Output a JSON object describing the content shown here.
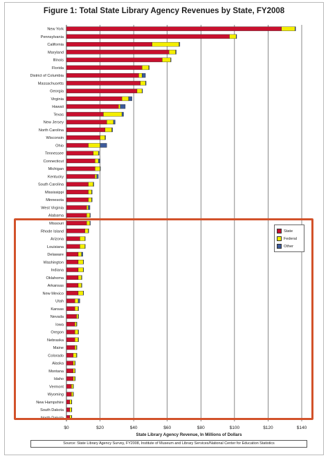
{
  "chart_data": {
    "type": "bar",
    "orientation": "horizontal",
    "stacked": true,
    "title": "Figure 1: Total State Library Agency Revenues by State, FY2008",
    "xlabel": "State Library Agency Revenue, In Millions of Dollars",
    "ylabel": "",
    "xlim": [
      0,
      140
    ],
    "x_ticks": [
      "$0",
      "$20",
      "$40",
      "$60",
      "$80",
      "$100",
      "$120",
      "$140"
    ],
    "x_tick_values": [
      0,
      20,
      40,
      60,
      80,
      100,
      120,
      140
    ],
    "grid": "vertical",
    "legend_position": "right",
    "categories": [
      "New York",
      "Pennsylvania",
      "California",
      "Maryland",
      "Illinois",
      "Florida",
      "District of Columbia",
      "Massachusetts",
      "Georgia",
      "Virginia",
      "Hawaii",
      "Texas",
      "New Jersey",
      "North Carolina",
      "Wisconsin",
      "Ohio",
      "Tennessee",
      "Connecticut",
      "Michigan",
      "Kentucky",
      "South Carolina",
      "Mississippi",
      "Minnesota",
      "West Virginia",
      "Alabama",
      "Missouri",
      "Rhode Island",
      "Arizona",
      "Louisiana",
      "Delaware",
      "Washington",
      "Indiana",
      "Oklahoma",
      "Arkansas",
      "New Mexico",
      "Utah",
      "Kansas",
      "Nevada",
      "Iowa",
      "Oregon",
      "Nebraska",
      "Maine",
      "Colorado",
      "Alaska",
      "Montana",
      "Idaho",
      "Vermont",
      "Wyoming",
      "New Hampshire",
      "South Dakota",
      "North Dakota"
    ],
    "series": [
      {
        "name": "State",
        "color": "#c8102e",
        "values": [
          128,
          97,
          51,
          61,
          57,
          45,
          43,
          44,
          42,
          33,
          31,
          22,
          24,
          23,
          20,
          13,
          16,
          17,
          17,
          17,
          13,
          13,
          13,
          12,
          12,
          12,
          11,
          8,
          8,
          7,
          7,
          7,
          7,
          7,
          7,
          5,
          5,
          6,
          5,
          5,
          5,
          5,
          4,
          4,
          4,
          4,
          3,
          3,
          2,
          2,
          2
        ]
      },
      {
        "name": "Federal",
        "color": "#f4ee00",
        "values": [
          8,
          4,
          16,
          4,
          5,
          4,
          2,
          3,
          3,
          4,
          1,
          11,
          4,
          4,
          3,
          7,
          3,
          2,
          3,
          1,
          3,
          2,
          2,
          1,
          2,
          2,
          2,
          3,
          3,
          2,
          3,
          3,
          2,
          2,
          3,
          2,
          2,
          1,
          1,
          2,
          2,
          1,
          2,
          1,
          1,
          1,
          1,
          1,
          1,
          1,
          1
        ]
      },
      {
        "name": "Other",
        "color": "#3d5a9a",
        "values": [
          0.4,
          0.3,
          0.5,
          0.4,
          0.3,
          0.3,
          2,
          0.4,
          0.3,
          2,
          3,
          1,
          1,
          0.5,
          0.3,
          4,
          0.5,
          1,
          0.3,
          1,
          0.3,
          0.3,
          0.3,
          1,
          0.2,
          0.2,
          0.3,
          0.2,
          0.2,
          0.8,
          0.2,
          0.2,
          0.2,
          0.2,
          0.2,
          1,
          0.2,
          0.2,
          0.2,
          0.2,
          0.2,
          0.2,
          0.2,
          0.2,
          0.2,
          0.2,
          0.2,
          0.2,
          0.2,
          0.2,
          0.2
        ]
      }
    ],
    "annotations": {
      "source_note": "Source: State Library Agency Survey, FY2008, Institute of Museum and Library Services/National Center for Education Statistics"
    }
  }
}
